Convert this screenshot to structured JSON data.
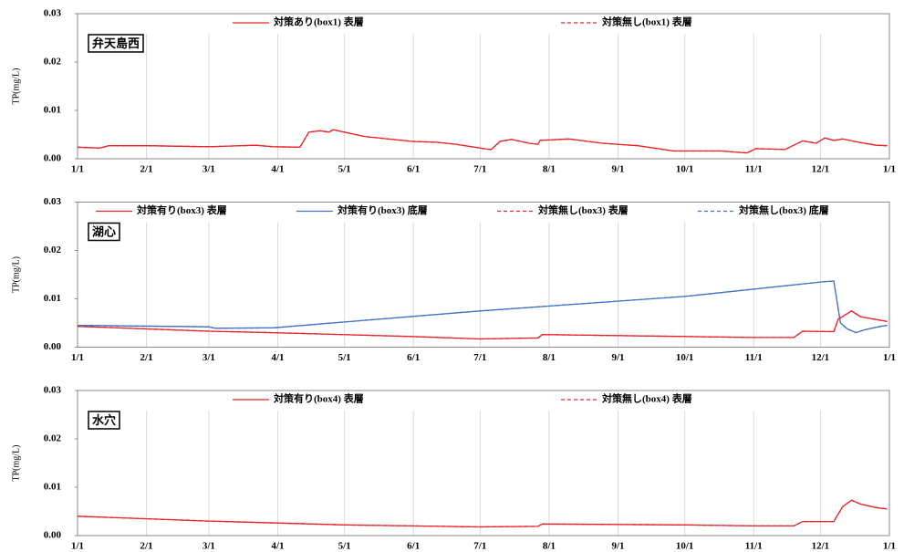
{
  "chart_data": [
    {
      "type": "line",
      "annotation": "弁天島西",
      "ylabel": "TP(mg/L)",
      "grid": "x",
      "xlim": [
        0,
        365
      ],
      "ylim": [
        0,
        0.03
      ],
      "xticks": [
        {
          "value": 0,
          "label": "1/1"
        },
        {
          "value": 31,
          "label": "2/1"
        },
        {
          "value": 59,
          "label": "3/1"
        },
        {
          "value": 90,
          "label": "4/1"
        },
        {
          "value": 120,
          "label": "5/1"
        },
        {
          "value": 151,
          "label": "6/1"
        },
        {
          "value": 181,
          "label": "7/1"
        },
        {
          "value": 212,
          "label": "8/1"
        },
        {
          "value": 243,
          "label": "9/1"
        },
        {
          "value": 273,
          "label": "10/1"
        },
        {
          "value": 304,
          "label": "11/1"
        },
        {
          "value": 334,
          "label": "12/1"
        },
        {
          "value": 365,
          "label": "1/1"
        }
      ],
      "yticks": [
        {
          "value": 0,
          "label": "0.00"
        },
        0.01,
        0.02,
        0.03
      ],
      "series": [
        {
          "name": "対策あり(box1) 表層",
          "color": "#e8242a",
          "dash": "solid",
          "x": [
            0,
            10,
            14,
            31,
            59,
            80,
            88,
            100,
            104,
            109,
            113,
            115,
            129,
            150,
            162,
            170,
            184,
            186,
            190,
            195,
            203,
            207,
            208,
            221,
            236,
            252,
            268,
            289,
            301,
            305,
            318,
            326,
            332,
            336,
            340,
            344,
            350,
            359,
            364
          ],
          "values": [
            0.0024,
            0.0022,
            0.0027,
            0.0027,
            0.0025,
            0.0028,
            0.0025,
            0.0024,
            0.0055,
            0.0058,
            0.0055,
            0.006,
            0.0046,
            0.0036,
            0.0034,
            0.003,
            0.002,
            0.0019,
            0.0036,
            0.004,
            0.0032,
            0.003,
            0.0038,
            0.0041,
            0.0032,
            0.0027,
            0.0016,
            0.0016,
            0.0012,
            0.0021,
            0.0019,
            0.0037,
            0.0032,
            0.0043,
            0.0038,
            0.0041,
            0.0035,
            0.0028,
            0.0027
          ]
        },
        {
          "name": "対策無し(box1) 表層",
          "color": "#e8242a",
          "dash": "dashed",
          "x": [
            0,
            10,
            14,
            31,
            59,
            80,
            88,
            100,
            104,
            109,
            113,
            115,
            129,
            150,
            162,
            170,
            184,
            186,
            190,
            195,
            203,
            207,
            208,
            221,
            236,
            252,
            268,
            289,
            301,
            305,
            318,
            326,
            332,
            336,
            340,
            344,
            350,
            359,
            364
          ],
          "values": [
            0.0024,
            0.0022,
            0.0027,
            0.0027,
            0.0025,
            0.0028,
            0.0025,
            0.0024,
            0.0055,
            0.0058,
            0.0055,
            0.006,
            0.0046,
            0.0036,
            0.0034,
            0.003,
            0.002,
            0.0019,
            0.0036,
            0.004,
            0.0032,
            0.003,
            0.0038,
            0.0041,
            0.0032,
            0.0027,
            0.0016,
            0.0016,
            0.0012,
            0.0021,
            0.0019,
            0.0037,
            0.0032,
            0.0043,
            0.0038,
            0.0041,
            0.0035,
            0.0028,
            0.0027
          ]
        }
      ]
    },
    {
      "type": "line",
      "annotation": "湖心",
      "ylabel": "TP(mg/L)",
      "grid": "x",
      "xlim": [
        0,
        365
      ],
      "ylim": [
        0,
        0.03
      ],
      "xticks": [
        {
          "value": 0,
          "label": "1/1"
        },
        {
          "value": 31,
          "label": "2/1"
        },
        {
          "value": 59,
          "label": "3/1"
        },
        {
          "value": 90,
          "label": "4/1"
        },
        {
          "value": 120,
          "label": "5/1"
        },
        {
          "value": 151,
          "label": "6/1"
        },
        {
          "value": 181,
          "label": "7/1"
        },
        {
          "value": 212,
          "label": "8/1"
        },
        {
          "value": 243,
          "label": "9/1"
        },
        {
          "value": 273,
          "label": "10/1"
        },
        {
          "value": 304,
          "label": "11/1"
        },
        {
          "value": 334,
          "label": "12/1"
        },
        {
          "value": 365,
          "label": "1/1"
        }
      ],
      "yticks": [
        {
          "value": 0,
          "label": "0.00"
        },
        0.01,
        0.02,
        0.03
      ],
      "series": [
        {
          "name": "対策有り(box3) 表層",
          "color": "#e8242a",
          "dash": "solid",
          "x": [
            0,
            59,
            88,
            150,
            181,
            207,
            209,
            273,
            304,
            322,
            326,
            340,
            342,
            348,
            352,
            364
          ],
          "values": [
            0.0043,
            0.0033,
            0.003,
            0.0022,
            0.0017,
            0.0019,
            0.0026,
            0.0022,
            0.002,
            0.002,
            0.0033,
            0.0032,
            0.0058,
            0.0075,
            0.0063,
            0.0053
          ]
        },
        {
          "name": "対策有り(box3) 底層",
          "color": "#4472c4",
          "dash": "solid",
          "x": [
            0,
            59,
            62,
            88,
            120,
            181,
            273,
            335,
            340,
            343,
            346,
            350,
            354,
            361,
            364
          ],
          "values": [
            0.0045,
            0.0042,
            0.0039,
            0.004,
            0.0052,
            0.0075,
            0.0105,
            0.0135,
            0.0137,
            0.005,
            0.0038,
            0.003,
            0.0036,
            0.0043,
            0.0045
          ]
        },
        {
          "name": "対策無し(box3) 表層",
          "color": "#e8242a",
          "dash": "dashed",
          "x": [
            0,
            59,
            88,
            150,
            181,
            207,
            209,
            273,
            304,
            322,
            326,
            340,
            342,
            348,
            352,
            364
          ],
          "values": [
            0.0043,
            0.0033,
            0.003,
            0.0022,
            0.0017,
            0.0019,
            0.0026,
            0.0022,
            0.002,
            0.002,
            0.0033,
            0.0032,
            0.0058,
            0.0075,
            0.0063,
            0.0053
          ]
        },
        {
          "name": "対策無し(box3) 底層",
          "color": "#4472c4",
          "dash": "dashed",
          "x": [
            0,
            59,
            62,
            88,
            120,
            181,
            273,
            335,
            340,
            343,
            346,
            350,
            354,
            361,
            364
          ],
          "values": [
            0.0045,
            0.0042,
            0.0039,
            0.004,
            0.0052,
            0.0075,
            0.0105,
            0.0135,
            0.0137,
            0.005,
            0.0038,
            0.003,
            0.0036,
            0.0043,
            0.0045
          ]
        }
      ]
    },
    {
      "type": "line",
      "annotation": "水穴",
      "ylabel": "TP(mg/L)",
      "grid": "x",
      "xlim": [
        0,
        365
      ],
      "ylim": [
        0,
        0.03
      ],
      "xticks": [
        {
          "value": 0,
          "label": "1/1"
        },
        {
          "value": 31,
          "label": "2/1"
        },
        {
          "value": 59,
          "label": "3/1"
        },
        {
          "value": 90,
          "label": "4/1"
        },
        {
          "value": 120,
          "label": "5/1"
        },
        {
          "value": 151,
          "label": "6/1"
        },
        {
          "value": 181,
          "label": "7/1"
        },
        {
          "value": 212,
          "label": "8/1"
        },
        {
          "value": 243,
          "label": "9/1"
        },
        {
          "value": 273,
          "label": "10/1"
        },
        {
          "value": 304,
          "label": "11/1"
        },
        {
          "value": 334,
          "label": "12/1"
        },
        {
          "value": 365,
          "label": "1/1"
        }
      ],
      "yticks": [
        {
          "value": 0,
          "label": "0.00"
        },
        0.01,
        0.02,
        0.03
      ],
      "series": [
        {
          "name": "対策有り(box4) 表層",
          "color": "#e8242a",
          "dash": "solid",
          "x": [
            0,
            59,
            120,
            181,
            207,
            209,
            273,
            304,
            322,
            326,
            340,
            344,
            348,
            352,
            359,
            364
          ],
          "values": [
            0.004,
            0.003,
            0.0022,
            0.0018,
            0.0019,
            0.0024,
            0.0022,
            0.002,
            0.002,
            0.0029,
            0.0029,
            0.006,
            0.0073,
            0.0065,
            0.0058,
            0.0055
          ]
        },
        {
          "name": "対策無し(box4) 表層",
          "color": "#e8242a",
          "dash": "dashed",
          "x": [
            0,
            59,
            120,
            181,
            207,
            209,
            273,
            304,
            322,
            326,
            340,
            344,
            348,
            352,
            359,
            364
          ],
          "values": [
            0.004,
            0.003,
            0.0022,
            0.0018,
            0.0019,
            0.0024,
            0.0022,
            0.002,
            0.002,
            0.0029,
            0.0029,
            0.006,
            0.0073,
            0.0065,
            0.0058,
            0.0055
          ]
        }
      ]
    }
  ]
}
